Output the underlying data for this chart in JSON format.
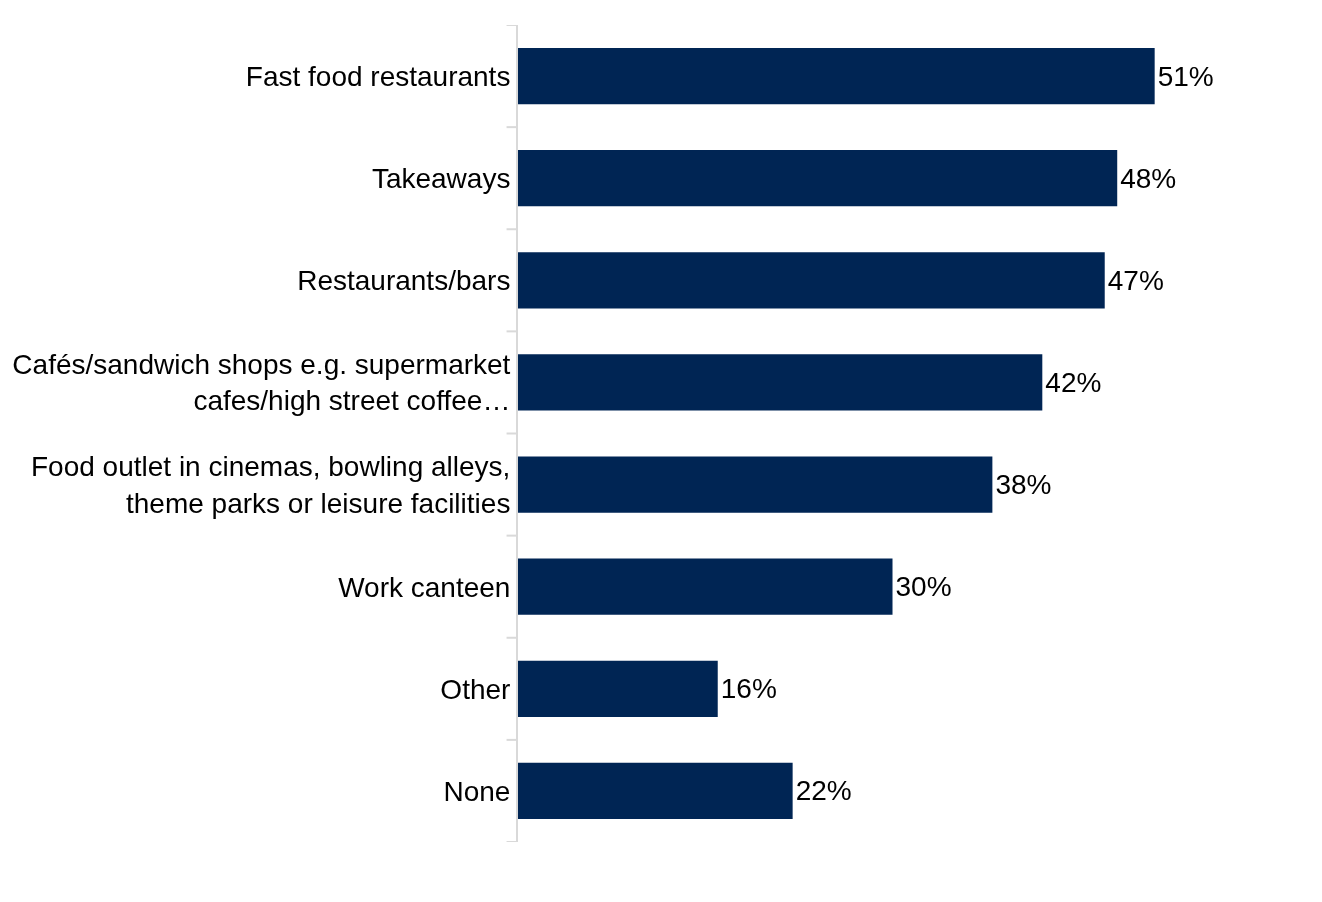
{
  "chart_data": {
    "type": "bar",
    "orientation": "horizontal",
    "categories": [
      "Fast food restaurants",
      "Takeaways",
      "Restaurants/bars",
      "Cafés/sandwich shops e.g. supermarket cafes/high street coffee…",
      "Food outlet in cinemas, bowling alleys, theme parks or leisure facilities",
      "Work canteen",
      "Other",
      "None"
    ],
    "values": [
      51,
      48,
      47,
      42,
      38,
      30,
      16,
      22
    ],
    "value_labels": [
      "51%",
      "48%",
      "47%",
      "42%",
      "38%",
      "30%",
      "16%",
      "22%"
    ],
    "color": "#002554",
    "tick_labels": "y"
  }
}
